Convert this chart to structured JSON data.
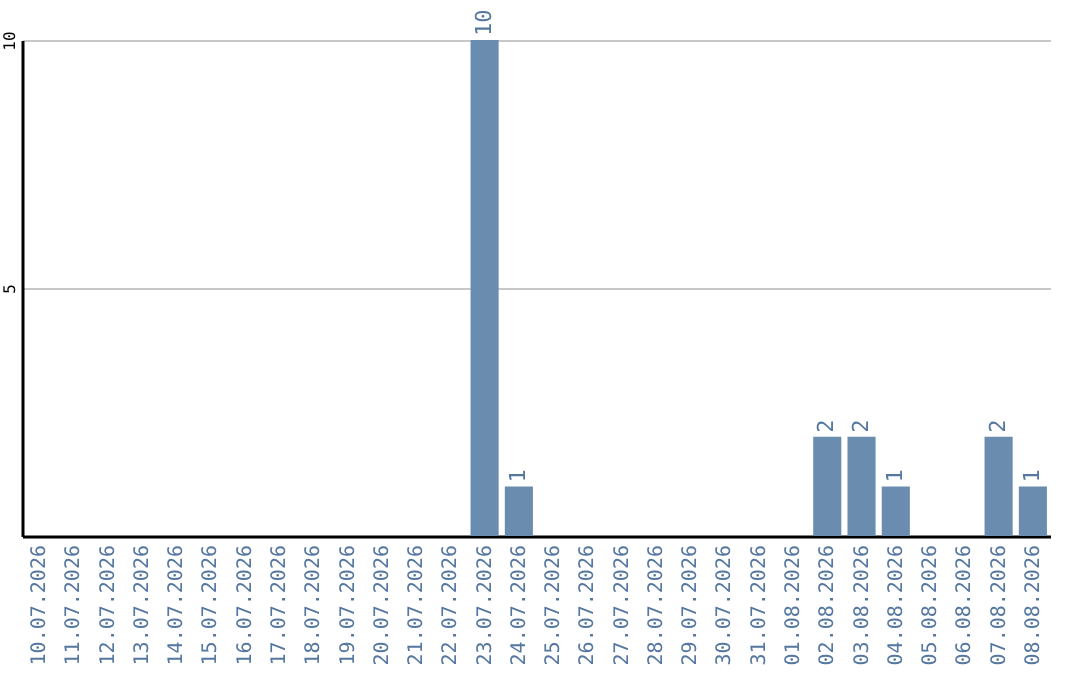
{
  "chart_data": {
    "type": "bar",
    "categories": [
      "10.07.2026",
      "11.07.2026",
      "12.07.2026",
      "13.07.2026",
      "14.07.2026",
      "15.07.2026",
      "16.07.2026",
      "17.07.2026",
      "18.07.2026",
      "19.07.2026",
      "20.07.2026",
      "21.07.2026",
      "22.07.2026",
      "23.07.2026",
      "24.07.2026",
      "25.07.2026",
      "26.07.2026",
      "27.07.2026",
      "28.07.2026",
      "29.07.2026",
      "30.07.2026",
      "31.07.2026",
      "01.08.2026",
      "02.08.2026",
      "03.08.2026",
      "04.08.2026",
      "05.08.2026",
      "06.08.2026",
      "07.08.2026",
      "08.08.2026"
    ],
    "values": [
      0,
      0,
      0,
      0,
      0,
      0,
      0,
      0,
      0,
      0,
      0,
      0,
      0,
      10,
      1,
      0,
      0,
      0,
      0,
      0,
      0,
      0,
      0,
      2,
      2,
      1,
      0,
      0,
      2,
      1
    ],
    "value_labels": [
      null,
      null,
      null,
      null,
      null,
      null,
      null,
      null,
      null,
      null,
      null,
      null,
      null,
      "10",
      "1",
      null,
      null,
      null,
      null,
      null,
      null,
      null,
      null,
      "2",
      "2",
      "1",
      null,
      null,
      "2",
      "1"
    ],
    "color": "#6a8caf",
    "ylim": [
      0,
      10
    ],
    "yticks": [
      5,
      10
    ],
    "grid": "y"
  }
}
